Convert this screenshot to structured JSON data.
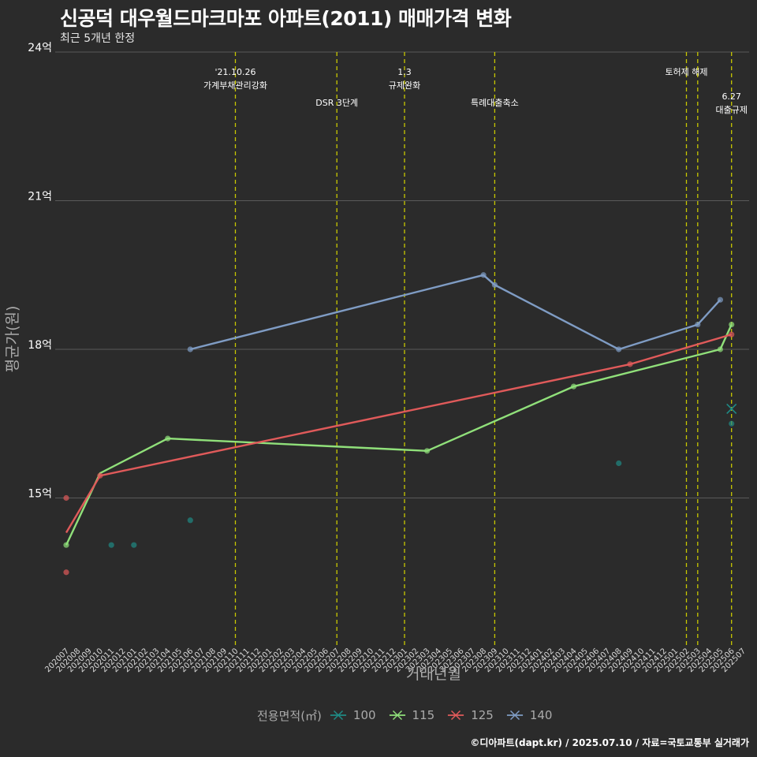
{
  "title": "신공덕 대우월드마크마포 아파트(2011) 매매가격 변화",
  "subtitle": "최근 5개년 한정",
  "caption": "©디아파트(dapt.kr) / 2025.07.10 / 자료=국토교통부 실거래가",
  "colors": {
    "background": "#2b2b2b",
    "grid": "#5a5a5a",
    "event_line": "#c8c800",
    "100": "#1f8a85",
    "115": "#90e07a",
    "125": "#e05a5a",
    "140": "#7f9cc4"
  },
  "chart_data": {
    "type": "line",
    "xlabel": "거래년월",
    "ylabel": "평균가(원)",
    "ylim": [
      12.0,
      24.0
    ],
    "yticks": [
      {
        "value": 15,
        "label": "15억"
      },
      {
        "value": 18,
        "label": "18억"
      },
      {
        "value": 21,
        "label": "21억"
      },
      {
        "value": 24,
        "label": "24억"
      }
    ],
    "categories": [
      "202007",
      "202008",
      "202009",
      "202010",
      "202011",
      "202012",
      "202101",
      "202102",
      "202103",
      "202104",
      "202105",
      "202106",
      "202107",
      "202108",
      "202109",
      "202110",
      "202111",
      "202112",
      "202201",
      "202202",
      "202203",
      "202204",
      "202205",
      "202206",
      "202207",
      "202208",
      "202209",
      "202210",
      "202211",
      "202212",
      "202301",
      "202302",
      "202303",
      "202304",
      "202305",
      "202306",
      "202307",
      "202308",
      "202309",
      "202310",
      "202311",
      "202312",
      "202401",
      "202402",
      "202403",
      "202404",
      "202405",
      "202406",
      "202407",
      "202408",
      "202409",
      "202410",
      "202411",
      "202412",
      "202501",
      "202502",
      "202503",
      "202504",
      "202505",
      "202506",
      "202507"
    ],
    "legend_title": "전용면적(㎡)",
    "legend_position": "bottom",
    "series": [
      {
        "name": "100",
        "points": [],
        "dots": [
          [
            "202011",
            14.05
          ],
          [
            "202101",
            14.05
          ],
          [
            "202106",
            14.55
          ],
          [
            "202408",
            15.7
          ],
          [
            "202506",
            16.5
          ]
        ],
        "trend": [
          [
            "202506",
            16.8
          ]
        ]
      },
      {
        "name": "115",
        "points": [
          [
            "202007",
            14.05
          ],
          [
            "202104",
            16.2
          ],
          [
            "202303",
            15.95
          ],
          [
            "202404",
            17.25
          ],
          [
            "202505",
            18.0
          ],
          [
            "202506",
            18.5
          ]
        ],
        "dots": [
          [
            "202007",
            14.05
          ],
          [
            "202104",
            16.2
          ],
          [
            "202303",
            15.95
          ],
          [
            "202404",
            17.25
          ],
          [
            "202505",
            18.0
          ],
          [
            "202506",
            18.5
          ]
        ],
        "trend": [
          [
            "202007",
            14.05
          ],
          [
            "202010",
            15.5
          ],
          [
            "202104",
            16.2
          ],
          [
            "202303",
            15.95
          ],
          [
            "202404",
            17.25
          ],
          [
            "202505",
            18.0
          ],
          [
            "202506",
            18.5
          ]
        ]
      },
      {
        "name": "125",
        "points": [
          [
            "202007",
            15.0
          ],
          [
            "202010",
            15.45
          ],
          [
            "202409",
            17.7
          ],
          [
            "202506",
            18.3
          ]
        ],
        "dots": [
          [
            "202007",
            15.0
          ],
          [
            "202007",
            13.5
          ],
          [
            "202010",
            15.45
          ],
          [
            "202409",
            17.7
          ],
          [
            "202506",
            18.3
          ]
        ],
        "trend": [
          [
            "202007",
            14.3
          ],
          [
            "202010",
            15.45
          ],
          [
            "202409",
            17.7
          ],
          [
            "202506",
            18.3
          ]
        ]
      },
      {
        "name": "140",
        "points": [
          [
            "202106",
            18.0
          ],
          [
            "202308",
            19.5
          ],
          [
            "202309",
            19.3
          ],
          [
            "202408",
            18.0
          ],
          [
            "202503",
            18.5
          ],
          [
            "202505",
            19.0
          ]
        ],
        "dots": [
          [
            "202106",
            18.0
          ],
          [
            "202308",
            19.5
          ],
          [
            "202309",
            19.3
          ],
          [
            "202408",
            18.0
          ],
          [
            "202503",
            18.5
          ],
          [
            "202505",
            19.0
          ]
        ],
        "trend": [
          [
            "202106",
            18.0
          ],
          [
            "202308",
            19.5
          ],
          [
            "202309",
            19.3
          ],
          [
            "202408",
            18.0
          ],
          [
            "202503",
            18.5
          ],
          [
            "202505",
            19.0
          ]
        ]
      }
    ],
    "events": [
      {
        "month": "202110",
        "lines": [
          "'21.10.26",
          "가계부채관리강화"
        ],
        "row": 0
      },
      {
        "month": "202207",
        "lines": [
          "DSR 3단계"
        ],
        "row": 1
      },
      {
        "month": "202301",
        "lines": [
          "1.3",
          "규제완화"
        ],
        "row": 0
      },
      {
        "month": "202309",
        "lines": [
          "특례대출축소"
        ],
        "row": 1
      },
      {
        "month": "202502",
        "lines": [
          "토허제 해제"
        ],
        "row": 0
      },
      {
        "month": "202503",
        "lines": [],
        "row": 0
      },
      {
        "month": "202506",
        "lines": [
          "6.27",
          "대출규제"
        ],
        "row": 1
      }
    ]
  }
}
